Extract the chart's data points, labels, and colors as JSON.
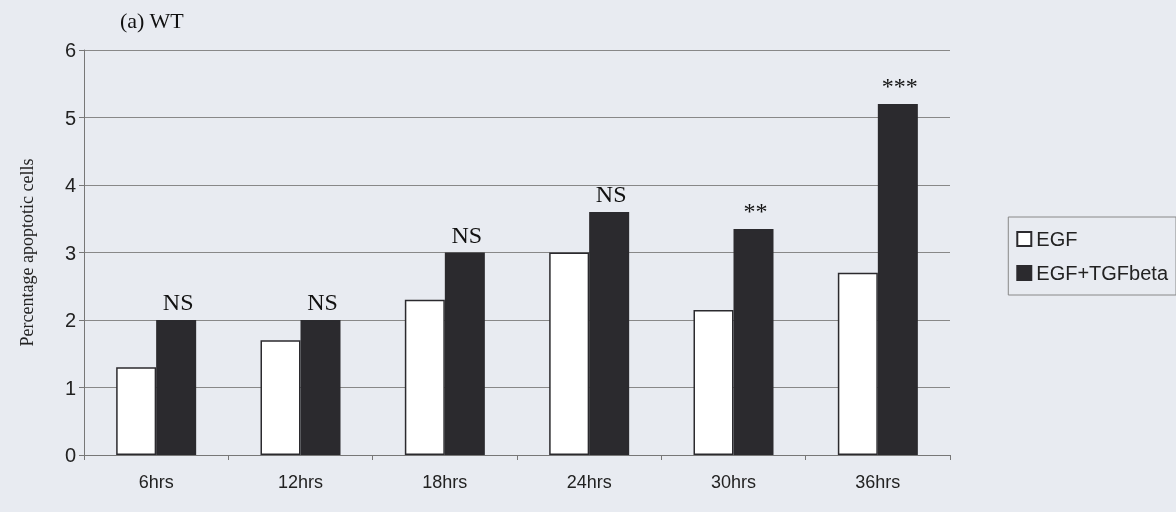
{
  "chart_data": {
    "type": "bar",
    "title": "(a) WT",
    "ylabel": "Percentage apoptotic cells",
    "categories": [
      "6hrs",
      "12hrs",
      "18hrs",
      "24hrs",
      "30hrs",
      "36hrs"
    ],
    "series": [
      {
        "name": "EGF",
        "color": "#ffffff",
        "values": [
          1.3,
          1.7,
          2.3,
          3.0,
          2.15,
          2.7
        ]
      },
      {
        "name": "EGF+TGFbeta",
        "color": "#2b2a2e",
        "values": [
          2.0,
          2.0,
          3.0,
          3.6,
          3.35,
          5.2
        ]
      }
    ],
    "ylim": [
      0,
      6
    ],
    "yticks": [
      0,
      1,
      2,
      3,
      4,
      5,
      6
    ],
    "grid": "y",
    "legend": "right",
    "annotations": [
      {
        "text": "NS",
        "x": "6hrs",
        "y": 2.0
      },
      {
        "text": "NS",
        "x": "12hrs",
        "y": 2.0
      },
      {
        "text": "NS",
        "x": "18hrs",
        "y": 3.0
      },
      {
        "text": "NS",
        "x": "24hrs",
        "y": 3.6
      },
      {
        "text": "**",
        "x": "30hrs",
        "y": 3.35
      },
      {
        "text": "***",
        "x": "36hrs",
        "y": 5.2
      }
    ]
  }
}
